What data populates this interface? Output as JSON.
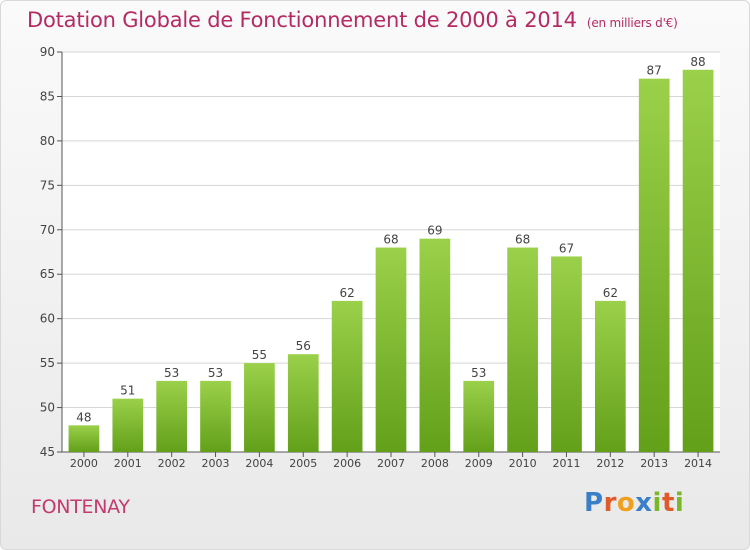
{
  "title": "Dotation Globale de Fonctionnement de 2000 à 2014",
  "subtitle": "(en milliers d'€)",
  "commune": "FONTENAY",
  "logo": {
    "text": "Proxiti",
    "letters": [
      {
        "char": "P",
        "color": "#3a7fc8"
      },
      {
        "char": "r",
        "color": "#e05a2a"
      },
      {
        "char": "o",
        "color": "#f0a020"
      },
      {
        "char": "x",
        "color": "#3a7fc8"
      },
      {
        "char": "i",
        "color": "#7ab82a"
      },
      {
        "char": "t",
        "color": "#e05a2a"
      },
      {
        "char": "i",
        "color": "#7ab82a"
      }
    ]
  },
  "colors": {
    "title": "#b52a63",
    "bar_light": "#9bd04a",
    "bar_dark": "#63a01a",
    "grid": "#d6d6d6",
    "axis": "#555555"
  },
  "chart_data": {
    "type": "bar",
    "categories": [
      "2000",
      "2001",
      "2002",
      "2003",
      "2004",
      "2005",
      "2006",
      "2007",
      "2008",
      "2009",
      "2010",
      "2011",
      "2012",
      "2013",
      "2014"
    ],
    "values": [
      48,
      51,
      53,
      53,
      55,
      56,
      62,
      68,
      69,
      53,
      68,
      67,
      62,
      87,
      88
    ],
    "ylim": [
      45,
      90
    ],
    "yticks": [
      45,
      50,
      55,
      60,
      65,
      70,
      75,
      80,
      85,
      90
    ],
    "grid": true,
    "data_labels": true
  }
}
